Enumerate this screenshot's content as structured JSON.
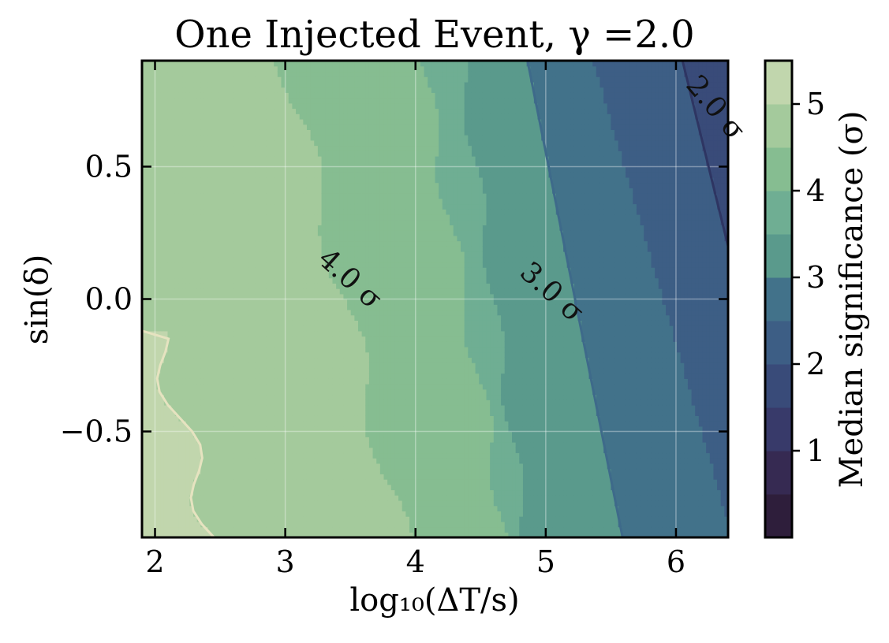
{
  "chart_data": {
    "type": "contourf",
    "title": "One Injected Event, γ =2.0",
    "xlabel": "log₁₀(ΔT/s)",
    "ylabel": "sin(δ)",
    "colorbar_label": "Median significance (σ)",
    "xlim": [
      1.9,
      6.4
    ],
    "ylim": [
      -0.9,
      0.9
    ],
    "xticks": [
      2,
      3,
      4,
      5,
      6
    ],
    "xtick_labels": [
      "2",
      "3",
      "4",
      "5",
      "6"
    ],
    "yticks": [
      0.5,
      0.0,
      -0.5
    ],
    "ytick_labels": [
      "0.5",
      "0.0",
      "−0.5"
    ],
    "colorbar_range": [
      0,
      5.5
    ],
    "colorbar_ticks": [
      1,
      2,
      3,
      4,
      5
    ],
    "colorbar_tick_labels": [
      "1",
      "2",
      "3",
      "4",
      "5"
    ],
    "grid": true,
    "levels": [
      {
        "from": 0.0,
        "to": 0.5,
        "color": "#2e1e3b"
      },
      {
        "from": 0.5,
        "to": 1.0,
        "color": "#362a52"
      },
      {
        "from": 1.0,
        "to": 1.5,
        "color": "#383a6a"
      },
      {
        "from": 1.5,
        "to": 2.0,
        "color": "#394b79"
      },
      {
        "from": 2.0,
        "to": 2.5,
        "color": "#3d5e85"
      },
      {
        "from": 2.5,
        "to": 3.0,
        "color": "#42728a"
      },
      {
        "from": 3.0,
        "to": 3.5,
        "color": "#5a9a8c"
      },
      {
        "from": 3.5,
        "to": 4.0,
        "color": "#6fae93"
      },
      {
        "from": 4.0,
        "to": 4.5,
        "color": "#86bd91"
      },
      {
        "from": 4.5,
        "to": 5.0,
        "color": "#a4ca9c"
      },
      {
        "from": 5.0,
        "to": 5.5,
        "color": "#c1d6ad"
      },
      {
        "from": 5.5,
        "to": 6.0,
        "color": "#dbe2c7"
      }
    ],
    "contour_labels": [
      {
        "text": "4.0 σ",
        "x": 3.45,
        "y": 0.05,
        "angle": 42
      },
      {
        "text": "3.0 σ",
        "x": 5.0,
        "y": 0.0,
        "angle": 42
      },
      {
        "text": "2.0 σ",
        "x": 6.25,
        "y": 0.7,
        "angle": 50
      }
    ]
  }
}
